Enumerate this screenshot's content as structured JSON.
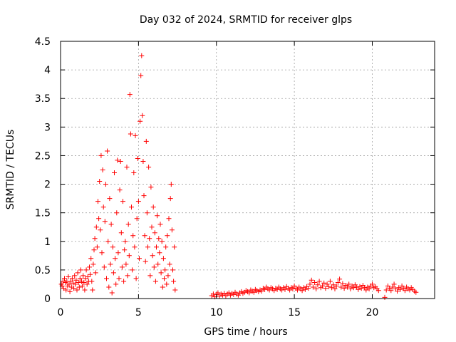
{
  "chart_data": {
    "type": "scatter",
    "title": "Day 032 of 2024, SRMTID for receiver glps",
    "xlabel": "GPS time / hours",
    "ylabel": "SRMTID / TECUs",
    "xlim": [
      0,
      24
    ],
    "ylim": [
      0,
      4.5
    ],
    "x_ticks": [
      0,
      5,
      10,
      15,
      20
    ],
    "x_tick_labels": [
      "0",
      "5",
      "10",
      "15",
      "20"
    ],
    "y_ticks": [
      0,
      0.5,
      1,
      1.5,
      2,
      2.5,
      3,
      3.5,
      4,
      4.5
    ],
    "y_tick_labels": [
      "0",
      "0.5",
      "1",
      "1.5",
      "2",
      "2.5",
      "3",
      "3.5",
      "4",
      "4.5"
    ],
    "grid": true,
    "marker": "+",
    "marker_color": "#ff0000",
    "series": [
      {
        "name": "SRMTID",
        "points": [
          [
            0.05,
            0.25
          ],
          [
            0.1,
            0.22
          ],
          [
            0.15,
            0.3
          ],
          [
            0.2,
            0.18
          ],
          [
            0.25,
            0.35
          ],
          [
            0.3,
            0.28
          ],
          [
            0.35,
            0.15
          ],
          [
            0.4,
            0.3
          ],
          [
            0.45,
            0.22
          ],
          [
            0.5,
            0.38
          ],
          [
            0.55,
            0.25
          ],
          [
            0.6,
            0.12
          ],
          [
            0.65,
            0.3
          ],
          [
            0.7,
            0.2
          ],
          [
            0.75,
            0.35
          ],
          [
            0.8,
            0.27
          ],
          [
            0.85,
            0.18
          ],
          [
            0.9,
            0.4
          ],
          [
            0.95,
            0.25
          ],
          [
            1.0,
            0.32
          ],
          [
            1.05,
            0.15
          ],
          [
            1.1,
            0.45
          ],
          [
            1.15,
            0.28
          ],
          [
            1.2,
            0.2
          ],
          [
            1.25,
            0.35
          ],
          [
            1.3,
            0.5
          ],
          [
            1.35,
            0.3
          ],
          [
            1.4,
            0.22
          ],
          [
            1.45,
            0.4
          ],
          [
            1.5,
            0.28
          ],
          [
            1.55,
            0.15
          ],
          [
            1.6,
            0.35
          ],
          [
            1.65,
            0.5
          ],
          [
            1.7,
            0.25
          ],
          [
            1.75,
            0.38
          ],
          [
            1.8,
            0.3
          ],
          [
            1.85,
            0.55
          ],
          [
            1.9,
            0.42
          ],
          [
            1.95,
            0.7
          ],
          [
            2.0,
            0.3
          ],
          [
            2.05,
            0.15
          ],
          [
            2.1,
            0.6
          ],
          [
            2.15,
            0.85
          ],
          [
            2.2,
            1.05
          ],
          [
            2.25,
            0.45
          ],
          [
            2.3,
            1.25
          ],
          [
            2.35,
            0.9
          ],
          [
            2.4,
            1.7
          ],
          [
            2.45,
            1.4
          ],
          [
            2.5,
            2.05
          ],
          [
            2.55,
            1.2
          ],
          [
            2.6,
            2.5
          ],
          [
            2.65,
            0.8
          ],
          [
            2.7,
            2.25
          ],
          [
            2.75,
            1.6
          ],
          [
            2.8,
            0.55
          ],
          [
            2.85,
            1.35
          ],
          [
            2.9,
            2.0
          ],
          [
            2.95,
            0.35
          ],
          [
            3.0,
            2.58
          ],
          [
            3.05,
            1.0
          ],
          [
            3.1,
            0.2
          ],
          [
            3.15,
            1.75
          ],
          [
            3.2,
            0.6
          ],
          [
            3.25,
            1.3
          ],
          [
            3.3,
            0.1
          ],
          [
            3.35,
            0.9
          ],
          [
            3.4,
            0.45
          ],
          [
            3.45,
            2.2
          ],
          [
            3.5,
            0.7
          ],
          [
            3.55,
            0.25
          ],
          [
            3.6,
            1.5
          ],
          [
            3.65,
            2.42
          ],
          [
            3.7,
            0.8
          ],
          [
            3.75,
            0.35
          ],
          [
            3.8,
            1.9
          ],
          [
            3.85,
            2.4
          ],
          [
            3.9,
            1.15
          ],
          [
            3.95,
            0.55
          ],
          [
            4.0,
            1.7
          ],
          [
            4.05,
            0.3
          ],
          [
            4.1,
            0.85
          ],
          [
            4.15,
            1.0
          ],
          [
            4.2,
            0.6
          ],
          [
            4.25,
            2.3
          ],
          [
            4.3,
            0.4
          ],
          [
            4.35,
            1.3
          ],
          [
            4.4,
            0.75
          ],
          [
            4.45,
            3.57
          ],
          [
            4.5,
            2.88
          ],
          [
            4.55,
            1.6
          ],
          [
            4.6,
            0.5
          ],
          [
            4.65,
            1.1
          ],
          [
            4.7,
            2.2
          ],
          [
            4.75,
            0.9
          ],
          [
            4.8,
            2.85
          ],
          [
            4.85,
            0.35
          ],
          [
            4.9,
            1.4
          ],
          [
            4.95,
            2.45
          ],
          [
            5.0,
            1.7
          ],
          [
            5.05,
            0.7
          ],
          [
            5.1,
            3.1
          ],
          [
            5.15,
            3.9
          ],
          [
            5.2,
            4.25
          ],
          [
            5.25,
            3.2
          ],
          [
            5.3,
            2.4
          ],
          [
            5.35,
            1.8
          ],
          [
            5.4,
            1.1
          ],
          [
            5.45,
            0.65
          ],
          [
            5.5,
            2.75
          ],
          [
            5.55,
            1.5
          ],
          [
            5.6,
            0.9
          ],
          [
            5.65,
            2.3
          ],
          [
            5.7,
            1.05
          ],
          [
            5.75,
            0.4
          ],
          [
            5.8,
            1.95
          ],
          [
            5.85,
            1.25
          ],
          [
            5.9,
            0.75
          ],
          [
            5.95,
            1.6
          ],
          [
            6.0,
            0.55
          ],
          [
            6.05,
            1.15
          ],
          [
            6.1,
            0.3
          ],
          [
            6.15,
            0.9
          ],
          [
            6.2,
            1.45
          ],
          [
            6.25,
            0.6
          ],
          [
            6.3,
            1.05
          ],
          [
            6.35,
            0.8
          ],
          [
            6.4,
            1.3
          ],
          [
            6.45,
            0.45
          ],
          [
            6.5,
            1.0
          ],
          [
            6.55,
            0.2
          ],
          [
            6.6,
            0.7
          ],
          [
            6.65,
            0.35
          ],
          [
            6.7,
            0.5
          ],
          [
            6.75,
            0.9
          ],
          [
            6.8,
            0.25
          ],
          [
            6.85,
            1.1
          ],
          [
            6.9,
            0.4
          ],
          [
            6.95,
            1.4
          ],
          [
            7.0,
            0.6
          ],
          [
            7.05,
            1.75
          ],
          [
            7.1,
            2.0
          ],
          [
            7.15,
            1.2
          ],
          [
            7.2,
            0.5
          ],
          [
            7.25,
            0.3
          ],
          [
            7.3,
            0.9
          ],
          [
            7.35,
            0.15
          ],
          [
            9.7,
            0.05
          ],
          [
            9.8,
            0.08
          ],
          [
            9.9,
            0.03
          ],
          [
            10.0,
            0.07
          ],
          [
            10.1,
            0.1
          ],
          [
            10.2,
            0.04
          ],
          [
            10.3,
            0.08
          ],
          [
            10.4,
            0.06
          ],
          [
            10.5,
            0.09
          ],
          [
            10.6,
            0.05
          ],
          [
            10.7,
            0.08
          ],
          [
            10.8,
            0.1
          ],
          [
            10.9,
            0.06
          ],
          [
            11.0,
            0.09
          ],
          [
            11.1,
            0.07
          ],
          [
            11.2,
            0.11
          ],
          [
            11.3,
            0.08
          ],
          [
            11.4,
            0.06
          ],
          [
            11.5,
            0.1
          ],
          [
            11.6,
            0.12
          ],
          [
            11.7,
            0.09
          ],
          [
            11.8,
            0.11
          ],
          [
            11.9,
            0.14
          ],
          [
            12.0,
            0.12
          ],
          [
            12.1,
            0.1
          ],
          [
            12.2,
            0.15
          ],
          [
            12.3,
            0.13
          ],
          [
            12.4,
            0.11
          ],
          [
            12.5,
            0.16
          ],
          [
            12.6,
            0.14
          ],
          [
            12.7,
            0.12
          ],
          [
            12.8,
            0.15
          ],
          [
            12.9,
            0.13
          ],
          [
            13.0,
            0.18
          ],
          [
            13.1,
            0.16
          ],
          [
            13.2,
            0.2
          ],
          [
            13.3,
            0.17
          ],
          [
            13.4,
            0.15
          ],
          [
            13.5,
            0.19
          ],
          [
            13.6,
            0.17
          ],
          [
            13.7,
            0.14
          ],
          [
            13.8,
            0.18
          ],
          [
            13.9,
            0.16
          ],
          [
            14.0,
            0.2
          ],
          [
            14.1,
            0.17
          ],
          [
            14.2,
            0.15
          ],
          [
            14.3,
            0.19
          ],
          [
            14.4,
            0.16
          ],
          [
            14.5,
            0.21
          ],
          [
            14.6,
            0.18
          ],
          [
            14.7,
            0.15
          ],
          [
            14.8,
            0.19
          ],
          [
            14.9,
            0.17
          ],
          [
            15.0,
            0.22
          ],
          [
            15.1,
            0.18
          ],
          [
            15.2,
            0.15
          ],
          [
            15.3,
            0.2
          ],
          [
            15.4,
            0.17
          ],
          [
            15.5,
            0.14
          ],
          [
            15.6,
            0.19
          ],
          [
            15.7,
            0.16
          ],
          [
            15.8,
            0.21
          ],
          [
            15.9,
            0.18
          ],
          [
            16.0,
            0.25
          ],
          [
            16.1,
            0.32
          ],
          [
            16.2,
            0.2
          ],
          [
            16.3,
            0.28
          ],
          [
            16.4,
            0.17
          ],
          [
            16.5,
            0.24
          ],
          [
            16.6,
            0.3
          ],
          [
            16.7,
            0.19
          ],
          [
            16.8,
            0.22
          ],
          [
            16.9,
            0.27
          ],
          [
            17.0,
            0.18
          ],
          [
            17.1,
            0.25
          ],
          [
            17.2,
            0.21
          ],
          [
            17.3,
            0.3
          ],
          [
            17.4,
            0.19
          ],
          [
            17.5,
            0.24
          ],
          [
            17.6,
            0.17
          ],
          [
            17.7,
            0.22
          ],
          [
            17.8,
            0.28
          ],
          [
            17.9,
            0.34
          ],
          [
            18.0,
            0.2
          ],
          [
            18.1,
            0.26
          ],
          [
            18.2,
            0.18
          ],
          [
            18.3,
            0.23
          ],
          [
            18.4,
            0.2
          ],
          [
            18.5,
            0.25
          ],
          [
            18.6,
            0.17
          ],
          [
            18.7,
            0.22
          ],
          [
            18.8,
            0.19
          ],
          [
            18.9,
            0.24
          ],
          [
            19.0,
            0.2
          ],
          [
            19.1,
            0.16
          ],
          [
            19.2,
            0.21
          ],
          [
            19.3,
            0.18
          ],
          [
            19.4,
            0.23
          ],
          [
            19.5,
            0.19
          ],
          [
            19.6,
            0.15
          ],
          [
            19.7,
            0.2
          ],
          [
            19.8,
            0.17
          ],
          [
            19.9,
            0.22
          ],
          [
            20.0,
            0.25
          ],
          [
            20.1,
            0.19
          ],
          [
            20.2,
            0.21
          ],
          [
            20.3,
            0.17
          ],
          [
            20.4,
            0.14
          ],
          [
            20.8,
            0.02
          ],
          [
            20.9,
            0.15
          ],
          [
            21.0,
            0.22
          ],
          [
            21.1,
            0.18
          ],
          [
            21.2,
            0.14
          ],
          [
            21.3,
            0.2
          ],
          [
            21.4,
            0.25
          ],
          [
            21.5,
            0.17
          ],
          [
            21.6,
            0.13
          ],
          [
            21.7,
            0.19
          ],
          [
            21.8,
            0.16
          ],
          [
            21.9,
            0.22
          ],
          [
            22.0,
            0.18
          ],
          [
            22.1,
            0.14
          ],
          [
            22.2,
            0.2
          ],
          [
            22.3,
            0.17
          ],
          [
            22.4,
            0.15
          ],
          [
            22.5,
            0.19
          ],
          [
            22.6,
            0.16
          ],
          [
            22.7,
            0.13
          ],
          [
            22.8,
            0.11
          ]
        ]
      }
    ]
  }
}
